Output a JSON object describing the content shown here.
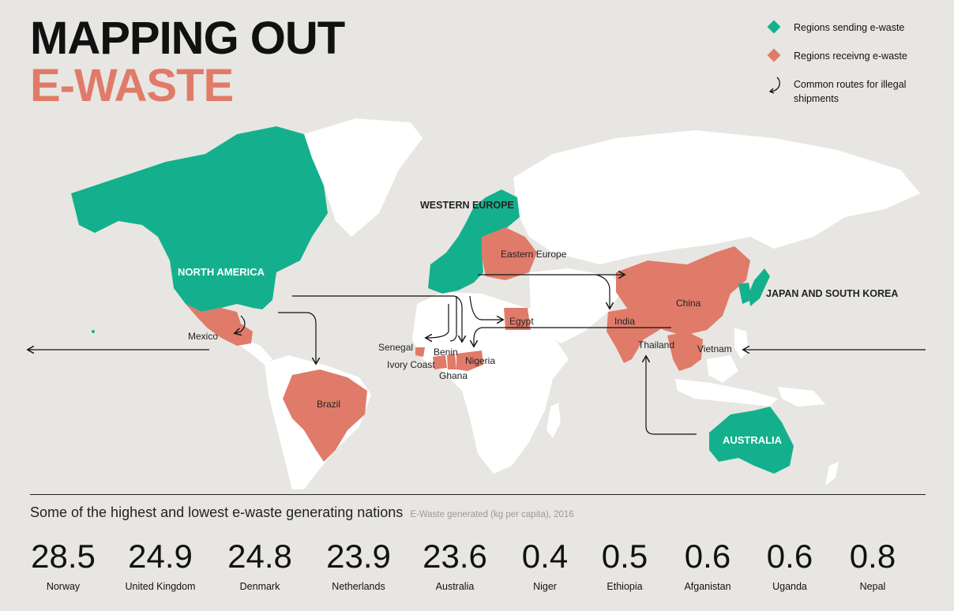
{
  "title": {
    "line1": "MAPPING OUT",
    "line2": "E-WASTE"
  },
  "legend": {
    "sending": "Regions sending e-waste",
    "receiving": "Regions receivng e-waste",
    "routes": "Common routes for illegal shipments"
  },
  "colors": {
    "sending": "#14b08d",
    "receiving": "#e07b6a",
    "land": "#ffffff",
    "background": "#e8e6e2"
  },
  "map_labels": {
    "western_europe": "WESTERN EUROPE",
    "north_america": "NORTH AMERICA",
    "japan_korea": "JAPAN AND SOUTH KOREA",
    "australia": "AUSTRALIA",
    "eastern_europe": "Eastern Europe",
    "china": "China",
    "india": "India",
    "egypt": "Egypt",
    "thailand": "Thailand",
    "vietnam": "Vietnam",
    "mexico": "Mexico",
    "brazil": "Brazil",
    "senegal": "Senegal",
    "benin": "Benin",
    "ivory_coast": "Ivory Coast",
    "nigeria": "Nigeria",
    "ghana": "Ghana"
  },
  "stats": {
    "title": "Some of the highest and lowest e-waste generating nations",
    "subtitle": "E-Waste generated (kg per capita), 2016",
    "items": [
      {
        "value": "28.5",
        "country": "Norway"
      },
      {
        "value": "24.9",
        "country": "United Kingdom"
      },
      {
        "value": "24.8",
        "country": "Denmark"
      },
      {
        "value": "23.9",
        "country": "Netherlands"
      },
      {
        "value": "23.6",
        "country": "Australia"
      },
      {
        "value": "0.4",
        "country": "Niger"
      },
      {
        "value": "0.5",
        "country": "Ethiopia"
      },
      {
        "value": "0.6",
        "country": "Afganistan"
      },
      {
        "value": "0.6",
        "country": "Uganda"
      },
      {
        "value": "0.8",
        "country": "Nepal"
      }
    ]
  }
}
